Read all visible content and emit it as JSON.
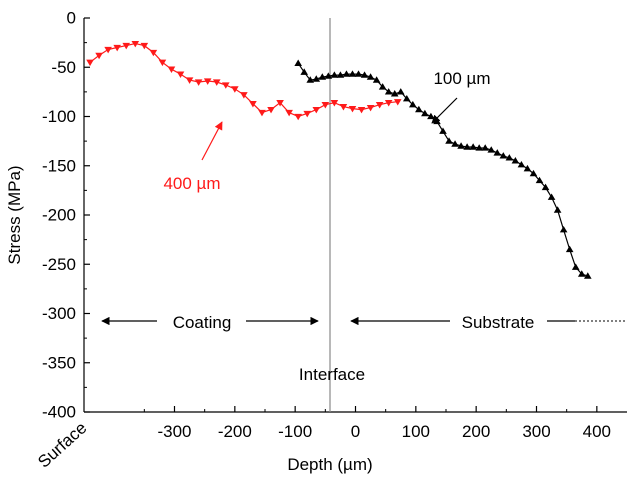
{
  "chart_data": {
    "type": "line",
    "xlabel": "Depth (µm)",
    "ylabel": "Stress (MPa)",
    "xlim": [
      -450,
      450
    ],
    "ylim": [
      -400,
      0
    ],
    "x_ticks": [
      -300,
      -200,
      -100,
      0,
      100,
      200,
      300,
      400
    ],
    "y_ticks": [
      0,
      -50,
      -100,
      -150,
      -200,
      -250,
      -300,
      -350,
      -400
    ],
    "series": [
      {
        "name": "400 µm",
        "color": "#ff1a1a",
        "marker": "triangle-down",
        "x": [
          -440,
          -425,
          -410,
          -395,
          -380,
          -365,
          -350,
          -335,
          -320,
          -305,
          -290,
          -275,
          -260,
          -245,
          -230,
          -215,
          -200,
          -185,
          -170,
          -155,
          -140,
          -125,
          -110,
          -95,
          -80,
          -65,
          -50,
          -35,
          -20,
          -5,
          10,
          25,
          40,
          55,
          70
        ],
        "y": [
          -45,
          -38,
          -32,
          -30,
          -28,
          -26,
          -28,
          -35,
          -45,
          -52,
          -57,
          -63,
          -65,
          -64,
          -65,
          -68,
          -72,
          -78,
          -87,
          -96,
          -93,
          -86,
          -96,
          -100,
          -97,
          -93,
          -88,
          -86,
          -90,
          -92,
          -93,
          -91,
          -88,
          -86,
          -85
        ]
      },
      {
        "name": "100 µm",
        "color": "#000000",
        "marker": "triangle-up",
        "x": [
          -95,
          -85,
          -75,
          -65,
          -55,
          -45,
          -35,
          -25,
          -15,
          -5,
          5,
          15,
          25,
          35,
          45,
          55,
          65,
          75,
          85,
          95,
          105,
          115,
          125,
          135,
          145,
          155,
          165,
          175,
          185,
          195,
          205,
          215,
          225,
          235,
          245,
          255,
          265,
          275,
          285,
          295,
          305,
          315,
          325,
          335,
          345,
          355,
          365,
          375,
          385
        ],
        "y": [
          -46,
          -55,
          -63,
          -62,
          -60,
          -59,
          -58,
          -58,
          -57,
          -57,
          -57,
          -58,
          -60,
          -63,
          -70,
          -75,
          -77,
          -75,
          -82,
          -88,
          -93,
          -97,
          -100,
          -105,
          -115,
          -125,
          -128,
          -130,
          -131,
          -131,
          -132,
          -132,
          -134,
          -137,
          -140,
          -142,
          -145,
          -149,
          -153,
          -158,
          -165,
          -172,
          -182,
          -195,
          -215,
          -235,
          -253,
          -260,
          -262
        ]
      }
    ],
    "annotations": {
      "label_400": "400 µm",
      "label_100": "100 µm",
      "coating": "Coating",
      "substrate": "Substrate",
      "interface": "Interface",
      "surface": "Surface"
    }
  }
}
